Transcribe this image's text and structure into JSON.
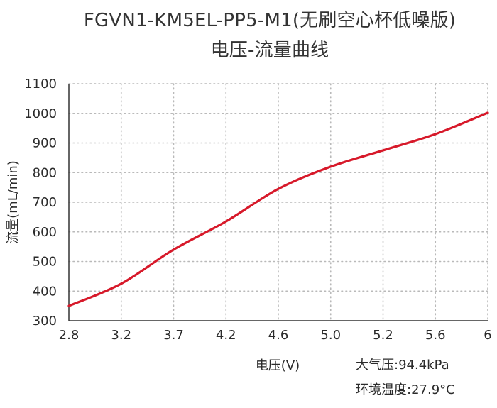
{
  "chart_data": {
    "type": "line",
    "title": "FGVN1-KM5EL-PP5-M1(无刷空心杯低噪版)",
    "subtitle": "电压-流量曲线",
    "xlabel": "电压(V)",
    "ylabel": "流量(mL/min)",
    "x_ticks": [
      "2.8",
      "3.2",
      "3.7",
      "4.2",
      "4.6",
      "5.0",
      "5.2",
      "5.6",
      "6"
    ],
    "y_ticks": [
      300,
      400,
      500,
      600,
      700,
      800,
      900,
      1000,
      1100
    ],
    "ylim": [
      300,
      1100
    ],
    "grid": true,
    "line_color": "#d7192a",
    "series": [
      {
        "x": [
          "2.8",
          "3.2",
          "3.7",
          "4.2",
          "4.6",
          "5.0",
          "5.2",
          "5.6",
          "6"
        ],
        "values": [
          350,
          425,
          540,
          635,
          745,
          820,
          875,
          930,
          1002
        ]
      }
    ]
  },
  "notes": {
    "pressure": "大气压:94.4kPa",
    "temperature": "环境温度:27.9°C"
  }
}
